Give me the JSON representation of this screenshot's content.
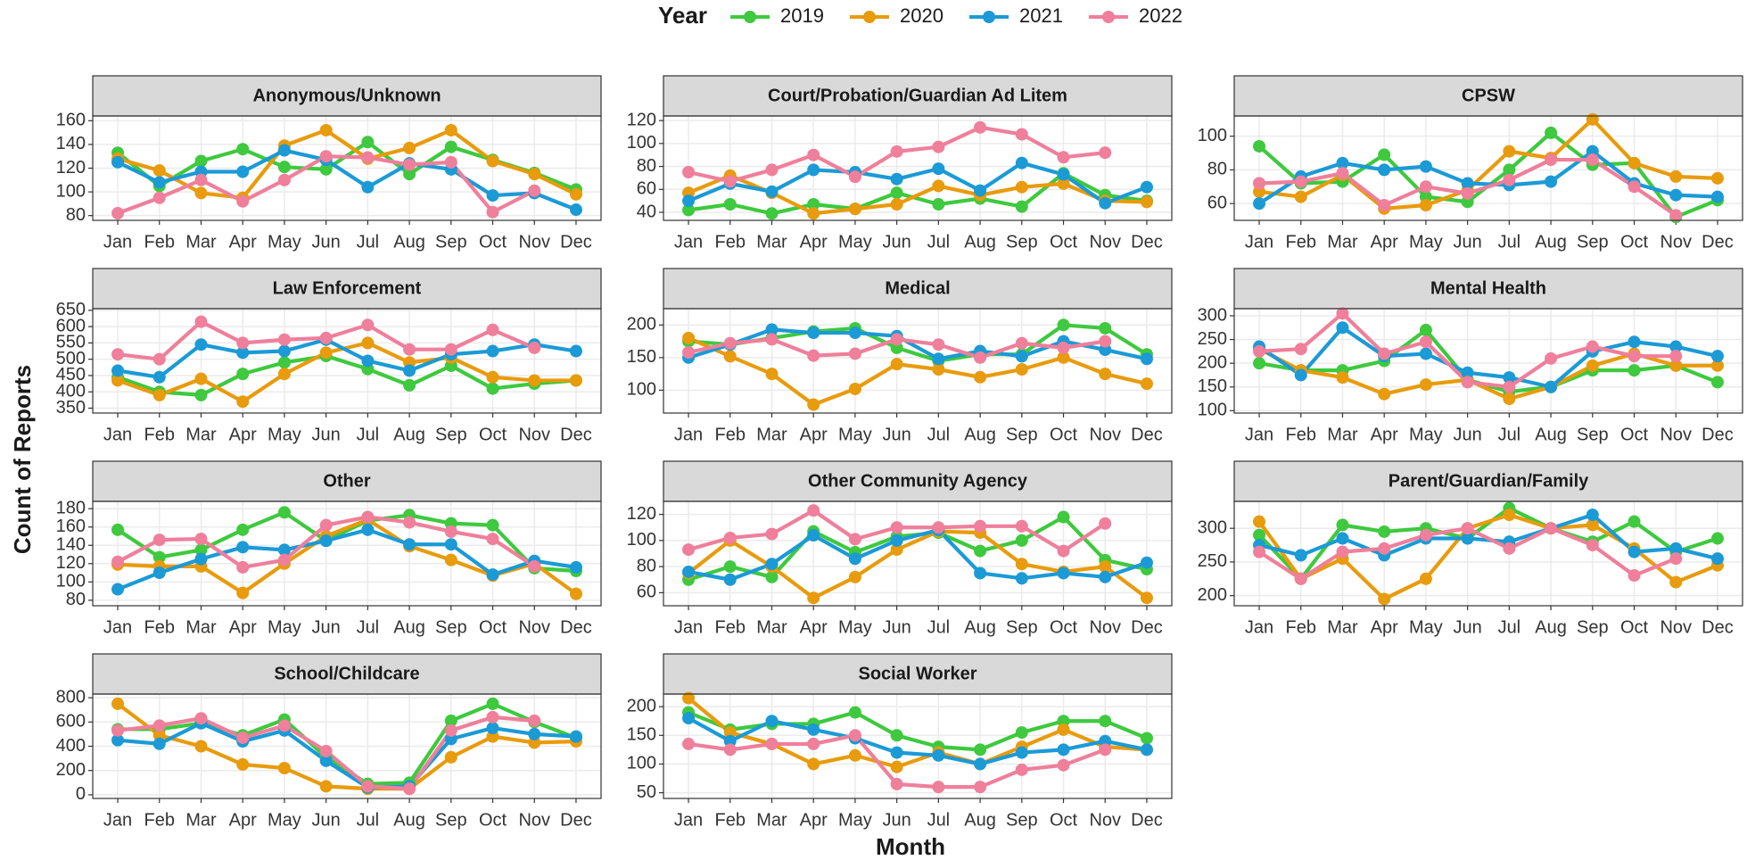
{
  "legend_title": "Year",
  "xlabel": "Month",
  "ylabel": "Count of Reports",
  "chart_data": [
    {
      "type": "line",
      "title": "Anonymous/Unknown",
      "categories": [
        "Jan",
        "Feb",
        "Mar",
        "Apr",
        "May",
        "Jun",
        "Jul",
        "Aug",
        "Sep",
        "Oct",
        "Nov",
        "Dec"
      ],
      "ylim": [
        76,
        164
      ],
      "yticks": [
        80,
        100,
        120,
        140,
        160
      ],
      "grid": true,
      "series": [
        {
          "name": "2019",
          "color": "#3ec93e",
          "values": [
            133,
            105,
            126,
            136,
            121,
            119,
            142,
            115,
            138,
            127,
            116,
            102
          ]
        },
        {
          "name": "2020",
          "color": "#e89b0c",
          "values": [
            128,
            118,
            99,
            95,
            139,
            152,
            128,
            137,
            152,
            126,
            115,
            98
          ]
        },
        {
          "name": "2021",
          "color": "#1b9ad6",
          "values": [
            125,
            108,
            117,
            117,
            135,
            127,
            104,
            124,
            119,
            97,
            99,
            85
          ]
        },
        {
          "name": "2022",
          "color": "#ef7f9b",
          "values": [
            82,
            95,
            110,
            92,
            110,
            130,
            129,
            123,
            125,
            83,
            101,
            null
          ]
        }
      ]
    },
    {
      "type": "line",
      "title": "Court/Probation/Guardian Ad Litem",
      "categories": [
        "Jan",
        "Feb",
        "Mar",
        "Apr",
        "May",
        "Jun",
        "Jul",
        "Aug",
        "Sep",
        "Oct",
        "Nov",
        "Dec"
      ],
      "ylim": [
        33,
        124
      ],
      "yticks": [
        40,
        60,
        80,
        100,
        120
      ],
      "grid": true,
      "series": [
        {
          "name": "2019",
          "color": "#3ec93e",
          "values": [
            42,
            47,
            39,
            47,
            43,
            57,
            47,
            52,
            45,
            74,
            55,
            50
          ]
        },
        {
          "name": "2020",
          "color": "#e89b0c",
          "values": [
            57,
            72,
            57,
            39,
            43,
            47,
            63,
            55,
            62,
            65,
            50,
            49
          ]
        },
        {
          "name": "2021",
          "color": "#1b9ad6",
          "values": [
            50,
            65,
            58,
            77,
            75,
            69,
            78,
            59,
            83,
            73,
            48,
            62
          ]
        },
        {
          "name": "2022",
          "color": "#ef7f9b",
          "values": [
            75,
            67,
            77,
            90,
            71,
            93,
            97,
            114,
            108,
            88,
            92,
            null
          ]
        }
      ]
    },
    {
      "type": "line",
      "title": "CPSW",
      "categories": [
        "Jan",
        "Feb",
        "Mar",
        "Apr",
        "May",
        "Jun",
        "Jul",
        "Aug",
        "Sep",
        "Oct",
        "Nov",
        "Dec"
      ],
      "ylim": [
        50,
        112
      ],
      "yticks": [
        60,
        80,
        100
      ],
      "grid": true,
      "series": [
        {
          "name": "2019",
          "color": "#3ec93e",
          "values": [
            94,
            72,
            73,
            89,
            64,
            61,
            80,
            102,
            83,
            84,
            52,
            62
          ]
        },
        {
          "name": "2020",
          "color": "#e89b0c",
          "values": [
            67,
            64,
            77,
            57,
            59,
            68,
            91,
            87,
            110,
            84,
            76,
            75
          ]
        },
        {
          "name": "2021",
          "color": "#1b9ad6",
          "values": [
            60,
            76,
            84,
            80,
            82,
            72,
            71,
            73,
            91,
            72,
            65,
            64
          ]
        },
        {
          "name": "2022",
          "color": "#ef7f9b",
          "values": [
            72,
            73,
            78,
            59,
            70,
            66,
            74,
            86,
            86,
            70,
            53,
            null
          ]
        }
      ]
    },
    {
      "type": "line",
      "title": "Law Enforcement",
      "categories": [
        "Jan",
        "Feb",
        "Mar",
        "Apr",
        "May",
        "Jun",
        "Jul",
        "Aug",
        "Sep",
        "Oct",
        "Nov",
        "Dec"
      ],
      "ylim": [
        335,
        655
      ],
      "yticks": [
        350,
        400,
        450,
        500,
        550,
        600,
        650
      ],
      "grid": true,
      "series": [
        {
          "name": "2019",
          "color": "#3ec93e",
          "values": [
            445,
            400,
            390,
            455,
            490,
            510,
            470,
            420,
            480,
            410,
            425,
            435
          ]
        },
        {
          "name": "2020",
          "color": "#e89b0c",
          "values": [
            435,
            390,
            440,
            370,
            455,
            520,
            550,
            490,
            505,
            445,
            435,
            435
          ]
        },
        {
          "name": "2021",
          "color": "#1b9ad6",
          "values": [
            465,
            445,
            545,
            520,
            525,
            560,
            495,
            465,
            515,
            525,
            545,
            525
          ]
        },
        {
          "name": "2022",
          "color": "#ef7f9b",
          "values": [
            515,
            500,
            615,
            550,
            560,
            565,
            605,
            530,
            530,
            590,
            535,
            null
          ]
        }
      ]
    },
    {
      "type": "line",
      "title": "Medical",
      "categories": [
        "Jan",
        "Feb",
        "Mar",
        "Apr",
        "May",
        "Jun",
        "Jul",
        "Aug",
        "Sep",
        "Oct",
        "Nov",
        "Dec"
      ],
      "ylim": [
        65,
        225
      ],
      "yticks": [
        100,
        150,
        200
      ],
      "grid": true,
      "series": [
        {
          "name": "2019",
          "color": "#3ec93e",
          "values": [
            175,
            170,
            180,
            190,
            195,
            165,
            145,
            155,
            155,
            200,
            195,
            155
          ]
        },
        {
          "name": "2020",
          "color": "#e89b0c",
          "values": [
            180,
            152,
            125,
            78,
            102,
            140,
            132,
            120,
            132,
            150,
            125,
            110
          ]
        },
        {
          "name": "2021",
          "color": "#1b9ad6",
          "values": [
            150,
            170,
            193,
            188,
            188,
            183,
            148,
            160,
            152,
            175,
            162,
            148
          ]
        },
        {
          "name": "2022",
          "color": "#ef7f9b",
          "values": [
            158,
            172,
            178,
            153,
            156,
            178,
            170,
            150,
            172,
            165,
            175,
            null
          ]
        }
      ]
    },
    {
      "type": "line",
      "title": "Mental Health",
      "categories": [
        "Jan",
        "Feb",
        "Mar",
        "Apr",
        "May",
        "Jun",
        "Jul",
        "Aug",
        "Sep",
        "Oct",
        "Nov",
        "Dec"
      ],
      "ylim": [
        95,
        315
      ],
      "yticks": [
        100,
        150,
        200,
        250,
        300
      ],
      "grid": true,
      "series": [
        {
          "name": "2019",
          "color": "#3ec93e",
          "values": [
            200,
            185,
            185,
            205,
            270,
            165,
            140,
            150,
            185,
            185,
            195,
            160
          ]
        },
        {
          "name": "2020",
          "color": "#e89b0c",
          "values": [
            230,
            185,
            170,
            135,
            155,
            165,
            125,
            150,
            195,
            220,
            195,
            195
          ]
        },
        {
          "name": "2021",
          "color": "#1b9ad6",
          "values": [
            235,
            175,
            275,
            215,
            220,
            180,
            170,
            150,
            225,
            245,
            235,
            215
          ]
        },
        {
          "name": "2022",
          "color": "#ef7f9b",
          "values": [
            225,
            230,
            305,
            220,
            245,
            160,
            150,
            210,
            235,
            215,
            215,
            null
          ]
        }
      ]
    },
    {
      "type": "line",
      "title": "Other",
      "categories": [
        "Jan",
        "Feb",
        "Mar",
        "Apr",
        "May",
        "Jun",
        "Jul",
        "Aug",
        "Sep",
        "Oct",
        "Nov",
        "Dec"
      ],
      "ylim": [
        74,
        188
      ],
      "yticks": [
        80,
        100,
        120,
        140,
        160,
        180
      ],
      "grid": true,
      "series": [
        {
          "name": "2019",
          "color": "#3ec93e",
          "values": [
            157,
            127,
            135,
            157,
            176,
            145,
            167,
            173,
            164,
            162,
            115,
            112
          ]
        },
        {
          "name": "2020",
          "color": "#e89b0c",
          "values": [
            119,
            117,
            117,
            88,
            120,
            150,
            168,
            139,
            124,
            107,
            120,
            87
          ]
        },
        {
          "name": "2021",
          "color": "#1b9ad6",
          "values": [
            92,
            110,
            125,
            138,
            135,
            145,
            157,
            141,
            141,
            108,
            123,
            116
          ]
        },
        {
          "name": "2022",
          "color": "#ef7f9b",
          "values": [
            122,
            146,
            147,
            116,
            124,
            162,
            171,
            165,
            155,
            147,
            117,
            null
          ]
        }
      ]
    },
    {
      "type": "line",
      "title": "Other Community Agency",
      "categories": [
        "Jan",
        "Feb",
        "Mar",
        "Apr",
        "May",
        "Jun",
        "Jul",
        "Aug",
        "Sep",
        "Oct",
        "Nov",
        "Dec"
      ],
      "ylim": [
        50,
        130
      ],
      "yticks": [
        60,
        80,
        100,
        120
      ],
      "grid": true,
      "series": [
        {
          "name": "2019",
          "color": "#3ec93e",
          "values": [
            70,
            80,
            72,
            107,
            91,
            103,
            106,
            92,
            100,
            118,
            85,
            78
          ]
        },
        {
          "name": "2020",
          "color": "#e89b0c",
          "values": [
            75,
            100,
            80,
            56,
            72,
            93,
            107,
            106,
            82,
            76,
            80,
            56
          ]
        },
        {
          "name": "2021",
          "color": "#1b9ad6",
          "values": [
            76,
            70,
            82,
            104,
            86,
            100,
            108,
            75,
            71,
            75,
            72,
            83
          ]
        },
        {
          "name": "2022",
          "color": "#ef7f9b",
          "values": [
            93,
            102,
            105,
            123,
            101,
            110,
            110,
            111,
            111,
            92,
            113,
            null
          ]
        }
      ]
    },
    {
      "type": "line",
      "title": "Parent/Guardian/Family",
      "categories": [
        "Jan",
        "Feb",
        "Mar",
        "Apr",
        "May",
        "Jun",
        "Jul",
        "Aug",
        "Sep",
        "Oct",
        "Nov",
        "Dec"
      ],
      "ylim": [
        185,
        340
      ],
      "yticks": [
        200,
        250,
        300
      ],
      "grid": true,
      "series": [
        {
          "name": "2019",
          "color": "#3ec93e",
          "values": [
            290,
            225,
            305,
            295,
            300,
            285,
            330,
            300,
            280,
            310,
            265,
            285
          ]
        },
        {
          "name": "2020",
          "color": "#e89b0c",
          "values": [
            310,
            225,
            255,
            195,
            225,
            300,
            320,
            300,
            305,
            270,
            220,
            245
          ]
        },
        {
          "name": "2021",
          "color": "#1b9ad6",
          "values": [
            275,
            260,
            285,
            260,
            285,
            285,
            280,
            300,
            320,
            265,
            270,
            255
          ]
        },
        {
          "name": "2022",
          "color": "#ef7f9b",
          "values": [
            265,
            225,
            265,
            270,
            290,
            300,
            270,
            300,
            275,
            230,
            255,
            null
          ]
        }
      ]
    },
    {
      "type": "line",
      "title": "School/Childcare",
      "categories": [
        "Jan",
        "Feb",
        "Mar",
        "Apr",
        "May",
        "Jun",
        "Jul",
        "Aug",
        "Sep",
        "Oct",
        "Nov",
        "Dec"
      ],
      "ylim": [
        -30,
        830
      ],
      "yticks": [
        0,
        200,
        400,
        600,
        800
      ],
      "grid": true,
      "series": [
        {
          "name": "2019",
          "color": "#3ec93e",
          "values": [
            540,
            540,
            590,
            490,
            620,
            310,
            90,
            100,
            610,
            750,
            600,
            470
          ]
        },
        {
          "name": "2020",
          "color": "#e89b0c",
          "values": [
            750,
            490,
            400,
            250,
            220,
            70,
            50,
            50,
            310,
            480,
            430,
            440
          ]
        },
        {
          "name": "2021",
          "color": "#1b9ad6",
          "values": [
            450,
            420,
            590,
            440,
            530,
            280,
            60,
            70,
            460,
            550,
            500,
            480
          ]
        },
        {
          "name": "2022",
          "color": "#ef7f9b",
          "values": [
            530,
            570,
            630,
            470,
            570,
            360,
            70,
            50,
            530,
            640,
            610,
            null
          ]
        }
      ]
    },
    {
      "type": "line",
      "title": "Social Worker",
      "categories": [
        "Jan",
        "Feb",
        "Mar",
        "Apr",
        "May",
        "Jun",
        "Jul",
        "Aug",
        "Sep",
        "Oct",
        "Nov",
        "Dec"
      ],
      "ylim": [
        40,
        222
      ],
      "yticks": [
        50,
        100,
        150,
        200
      ],
      "grid": true,
      "series": [
        {
          "name": "2019",
          "color": "#3ec93e",
          "values": [
            190,
            160,
            170,
            170,
            190,
            150,
            130,
            125,
            155,
            175,
            175,
            145
          ]
        },
        {
          "name": "2020",
          "color": "#e89b0c",
          "values": [
            215,
            155,
            135,
            100,
            115,
            95,
            120,
            100,
            130,
            160,
            130,
            125
          ]
        },
        {
          "name": "2021",
          "color": "#1b9ad6",
          "values": [
            180,
            140,
            175,
            160,
            145,
            120,
            115,
            100,
            120,
            125,
            140,
            125
          ]
        },
        {
          "name": "2022",
          "color": "#ef7f9b",
          "values": [
            135,
            125,
            135,
            135,
            150,
            65,
            60,
            60,
            90,
            98,
            125,
            null
          ]
        }
      ]
    }
  ]
}
